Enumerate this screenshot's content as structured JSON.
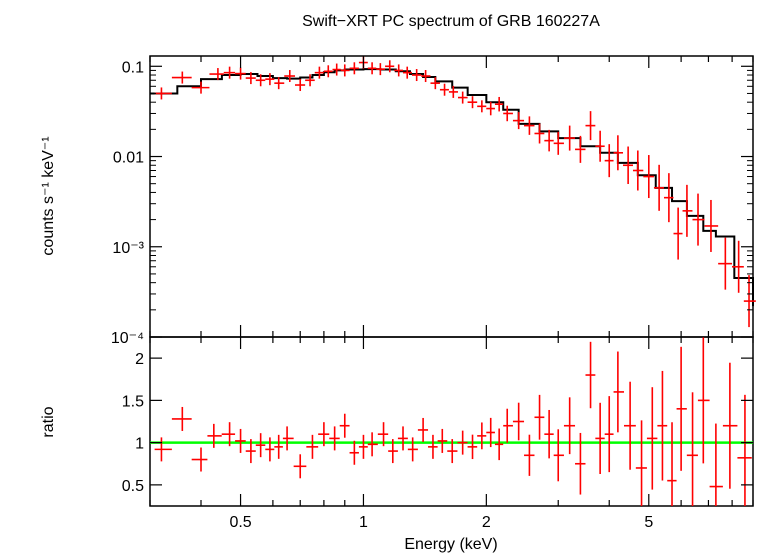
{
  "chart_data": [
    {
      "type": "scatter",
      "title": "Swift−XRT PC spectrum of GRB 160227A",
      "xlabel": "",
      "ylabel": "counts s⁻¹ keV⁻¹",
      "xscale": "log",
      "yscale": "log",
      "xlim": [
        0.3,
        9.0
      ],
      "ylim": [
        0.0001,
        0.13
      ],
      "yticks": [
        {
          "v": 0.1,
          "label": "0.1"
        },
        {
          "v": 0.01,
          "label": "0.01"
        },
        {
          "v": 0.001,
          "label": "10⁻³"
        },
        {
          "v": 0.0001,
          "label": "10⁻⁴"
        }
      ],
      "series": [
        {
          "role": "data",
          "color": "#ff0000",
          "points": [
            {
              "x": 0.32,
              "y": 0.05
            },
            {
              "x": 0.36,
              "y": 0.075
            },
            {
              "x": 0.4,
              "y": 0.058
            },
            {
              "x": 0.44,
              "y": 0.082
            },
            {
              "x": 0.47,
              "y": 0.085
            },
            {
              "x": 0.5,
              "y": 0.083
            },
            {
              "x": 0.53,
              "y": 0.074
            },
            {
              "x": 0.56,
              "y": 0.07
            },
            {
              "x": 0.59,
              "y": 0.072
            },
            {
              "x": 0.62,
              "y": 0.065
            },
            {
              "x": 0.66,
              "y": 0.078
            },
            {
              "x": 0.7,
              "y": 0.062
            },
            {
              "x": 0.74,
              "y": 0.07
            },
            {
              "x": 0.78,
              "y": 0.085
            },
            {
              "x": 0.82,
              "y": 0.088
            },
            {
              "x": 0.86,
              "y": 0.092
            },
            {
              "x": 0.9,
              "y": 0.09
            },
            {
              "x": 0.95,
              "y": 0.095
            },
            {
              "x": 1.0,
              "y": 0.11
            },
            {
              "x": 1.05,
              "y": 0.095
            },
            {
              "x": 1.1,
              "y": 0.093
            },
            {
              "x": 1.16,
              "y": 0.1
            },
            {
              "x": 1.22,
              "y": 0.09
            },
            {
              "x": 1.28,
              "y": 0.085
            },
            {
              "x": 1.35,
              "y": 0.08
            },
            {
              "x": 1.42,
              "y": 0.078
            },
            {
              "x": 1.5,
              "y": 0.065
            },
            {
              "x": 1.58,
              "y": 0.055
            },
            {
              "x": 1.66,
              "y": 0.052
            },
            {
              "x": 1.75,
              "y": 0.045
            },
            {
              "x": 1.85,
              "y": 0.04
            },
            {
              "x": 1.95,
              "y": 0.036
            },
            {
              "x": 2.05,
              "y": 0.034
            },
            {
              "x": 2.15,
              "y": 0.038
            },
            {
              "x": 2.25,
              "y": 0.03
            },
            {
              "x": 2.4,
              "y": 0.025
            },
            {
              "x": 2.55,
              "y": 0.022
            },
            {
              "x": 2.7,
              "y": 0.018
            },
            {
              "x": 2.85,
              "y": 0.015
            },
            {
              "x": 3.0,
              "y": 0.014
            },
            {
              "x": 3.2,
              "y": 0.016
            },
            {
              "x": 3.4,
              "y": 0.012
            },
            {
              "x": 3.6,
              "y": 0.022
            },
            {
              "x": 3.8,
              "y": 0.013
            },
            {
              "x": 4.0,
              "y": 0.009
            },
            {
              "x": 4.2,
              "y": 0.011
            },
            {
              "x": 4.45,
              "y": 0.008
            },
            {
              "x": 4.7,
              "y": 0.007
            },
            {
              "x": 5.0,
              "y": 0.006
            },
            {
              "x": 5.3,
              "y": 0.0045
            },
            {
              "x": 5.6,
              "y": 0.0035
            },
            {
              "x": 5.9,
              "y": 0.0014
            },
            {
              "x": 6.2,
              "y": 0.0025
            },
            {
              "x": 6.6,
              "y": 0.002
            },
            {
              "x": 7.1,
              "y": 0.0017
            },
            {
              "x": 7.7,
              "y": 0.00065
            },
            {
              "x": 8.3,
              "y": 0.0006
            },
            {
              "x": 8.8,
              "y": 0.00025
            }
          ]
        },
        {
          "role": "model",
          "color": "#000000",
          "points": [
            {
              "x": 0.3,
              "y": 0.05
            },
            {
              "x": 0.35,
              "y": 0.06
            },
            {
              "x": 0.4,
              "y": 0.072
            },
            {
              "x": 0.45,
              "y": 0.08
            },
            {
              "x": 0.5,
              "y": 0.082
            },
            {
              "x": 0.55,
              "y": 0.078
            },
            {
              "x": 0.6,
              "y": 0.074
            },
            {
              "x": 0.65,
              "y": 0.073
            },
            {
              "x": 0.7,
              "y": 0.075
            },
            {
              "x": 0.75,
              "y": 0.08
            },
            {
              "x": 0.8,
              "y": 0.086
            },
            {
              "x": 0.85,
              "y": 0.09
            },
            {
              "x": 0.9,
              "y": 0.092
            },
            {
              "x": 1.0,
              "y": 0.093
            },
            {
              "x": 1.1,
              "y": 0.092
            },
            {
              "x": 1.2,
              "y": 0.088
            },
            {
              "x": 1.3,
              "y": 0.082
            },
            {
              "x": 1.4,
              "y": 0.076
            },
            {
              "x": 1.5,
              "y": 0.068
            },
            {
              "x": 1.65,
              "y": 0.058
            },
            {
              "x": 1.8,
              "y": 0.048
            },
            {
              "x": 2.0,
              "y": 0.04
            },
            {
              "x": 2.2,
              "y": 0.033
            },
            {
              "x": 2.4,
              "y": 0.023
            },
            {
              "x": 2.7,
              "y": 0.019
            },
            {
              "x": 3.0,
              "y": 0.016
            },
            {
              "x": 3.4,
              "y": 0.013
            },
            {
              "x": 3.8,
              "y": 0.011
            },
            {
              "x": 4.2,
              "y": 0.0085
            },
            {
              "x": 4.7,
              "y": 0.0062
            },
            {
              "x": 5.2,
              "y": 0.0045
            },
            {
              "x": 5.7,
              "y": 0.0032
            },
            {
              "x": 6.2,
              "y": 0.0022
            },
            {
              "x": 6.8,
              "y": 0.0015
            },
            {
              "x": 7.3,
              "y": 0.0013
            },
            {
              "x": 8.1,
              "y": 0.00045
            },
            {
              "x": 9.0,
              "y": 0.00022
            }
          ]
        }
      ]
    },
    {
      "type": "scatter",
      "title": "",
      "xlabel": "Energy (keV)",
      "ylabel": "ratio",
      "xscale": "log",
      "yscale": "linear",
      "xlim": [
        0.3,
        9.0
      ],
      "ylim": [
        0.25,
        2.25
      ],
      "xticks": [
        {
          "v": 0.5,
          "label": "0.5"
        },
        {
          "v": 1,
          "label": "1"
        },
        {
          "v": 2,
          "label": "2"
        },
        {
          "v": 5,
          "label": "5"
        }
      ],
      "yticks": [
        {
          "v": 0.5,
          "label": "0.5"
        },
        {
          "v": 1,
          "label": "1"
        },
        {
          "v": 1.5,
          "label": "1.5"
        },
        {
          "v": 2,
          "label": "2"
        }
      ],
      "reference_line": {
        "y": 1,
        "color": "#00ff00"
      },
      "series": [
        {
          "role": "data",
          "color": "#ff0000",
          "points": [
            {
              "x": 0.32,
              "y": 0.92
            },
            {
              "x": 0.36,
              "y": 1.28
            },
            {
              "x": 0.4,
              "y": 0.8
            },
            {
              "x": 0.43,
              "y": 1.08
            },
            {
              "x": 0.47,
              "y": 1.1
            },
            {
              "x": 0.5,
              "y": 1.02
            },
            {
              "x": 0.53,
              "y": 0.9
            },
            {
              "x": 0.56,
              "y": 0.97
            },
            {
              "x": 0.59,
              "y": 0.92
            },
            {
              "x": 0.62,
              "y": 0.95
            },
            {
              "x": 0.65,
              "y": 1.05
            },
            {
              "x": 0.7,
              "y": 0.72
            },
            {
              "x": 0.75,
              "y": 0.95
            },
            {
              "x": 0.8,
              "y": 1.1
            },
            {
              "x": 0.85,
              "y": 1.05
            },
            {
              "x": 0.9,
              "y": 1.2
            },
            {
              "x": 0.95,
              "y": 0.88
            },
            {
              "x": 1.0,
              "y": 0.95
            },
            {
              "x": 1.05,
              "y": 0.98
            },
            {
              "x": 1.12,
              "y": 1.1
            },
            {
              "x": 1.18,
              "y": 0.9
            },
            {
              "x": 1.25,
              "y": 1.05
            },
            {
              "x": 1.32,
              "y": 0.92
            },
            {
              "x": 1.4,
              "y": 1.15
            },
            {
              "x": 1.48,
              "y": 0.95
            },
            {
              "x": 1.56,
              "y": 1.02
            },
            {
              "x": 1.65,
              "y": 0.9
            },
            {
              "x": 1.75,
              "y": 1.0
            },
            {
              "x": 1.85,
              "y": 0.95
            },
            {
              "x": 1.95,
              "y": 1.08
            },
            {
              "x": 2.05,
              "y": 1.12
            },
            {
              "x": 2.15,
              "y": 0.98
            },
            {
              "x": 2.25,
              "y": 1.2
            },
            {
              "x": 2.4,
              "y": 1.25
            },
            {
              "x": 2.55,
              "y": 0.85
            },
            {
              "x": 2.7,
              "y": 1.3
            },
            {
              "x": 2.85,
              "y": 1.1
            },
            {
              "x": 3.0,
              "y": 0.85
            },
            {
              "x": 3.2,
              "y": 1.2
            },
            {
              "x": 3.4,
              "y": 0.75
            },
            {
              "x": 3.6,
              "y": 1.8
            },
            {
              "x": 3.8,
              "y": 1.05
            },
            {
              "x": 4.0,
              "y": 1.1
            },
            {
              "x": 4.2,
              "y": 1.6
            },
            {
              "x": 4.5,
              "y": 1.2
            },
            {
              "x": 4.8,
              "y": 0.7
            },
            {
              "x": 5.1,
              "y": 1.05
            },
            {
              "x": 5.4,
              "y": 1.2
            },
            {
              "x": 5.7,
              "y": 0.55
            },
            {
              "x": 6.0,
              "y": 1.4
            },
            {
              "x": 6.4,
              "y": 0.85
            },
            {
              "x": 6.8,
              "y": 1.5
            },
            {
              "x": 7.3,
              "y": 0.48
            },
            {
              "x": 7.9,
              "y": 1.2
            },
            {
              "x": 8.6,
              "y": 0.82
            }
          ]
        }
      ]
    }
  ]
}
